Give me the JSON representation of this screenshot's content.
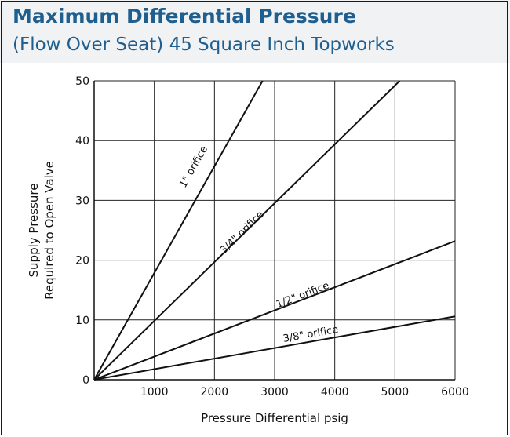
{
  "title": "Maximum Differential Pressure",
  "subtitle": "(Flow Over Seat) 45 Square Inch Topworks",
  "chart_data": {
    "type": "line",
    "xlabel": "Pressure Differential psig",
    "ylabel_line1": "Supply Pressure",
    "ylabel_line2": "Required to Open Valve",
    "xlim": [
      0,
      6000
    ],
    "ylim": [
      0,
      50
    ],
    "x_ticks": [
      1000,
      2000,
      3000,
      4000,
      5000,
      6000
    ],
    "y_ticks": [
      0,
      10,
      20,
      30,
      40,
      50
    ],
    "grid": true,
    "series": [
      {
        "name": "1\" orifice",
        "x": [
          0,
          2800
        ],
        "y": [
          0,
          50
        ],
        "label_x": 1510,
        "label_y": 32
      },
      {
        "name": "3/4\" orifice",
        "x": [
          0,
          5080
        ],
        "y": [
          0,
          50
        ],
        "label_x": 2160,
        "label_y": 21
      },
      {
        "name": "1/2\" orifice",
        "x": [
          0,
          6000
        ],
        "y": [
          0,
          23.2
        ],
        "label_x": 3050,
        "label_y": 12
      },
      {
        "name": "3/8\" orifice",
        "x": [
          0,
          6000
        ],
        "y": [
          0,
          10.6
        ],
        "label_x": 3150,
        "label_y": 6.3
      }
    ],
    "colors": {
      "line": "#111111",
      "grid": "#222222",
      "title": "#1f5f8f"
    }
  }
}
